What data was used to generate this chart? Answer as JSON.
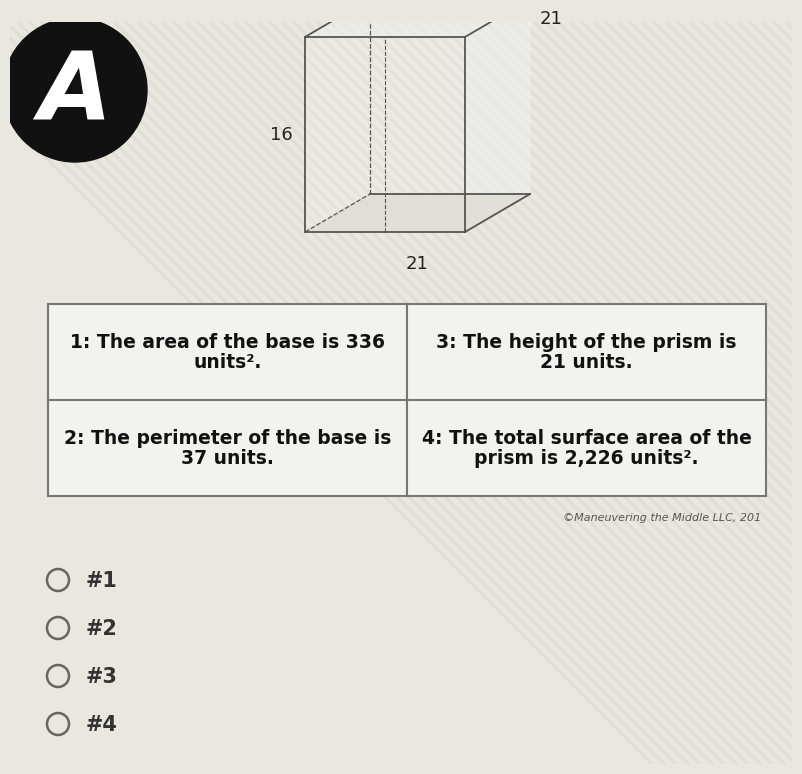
{
  "background_color": "#e8e8e0",
  "stripe_color": "#d8d8cc",
  "title_circle_color": "#111111",
  "title_letter": "A",
  "title_letter_color": "#ffffff",
  "title_letter_fontsize": 68,
  "cell1_text_line1": "1: The area of the base is 336",
  "cell1_text_line2": "units².",
  "cell2_text_line1": "2: The perimeter of the base is",
  "cell2_text_line2": "37 units.",
  "cell3_text_line1": "3: The height of the prism is",
  "cell3_text_line2": "21 units.",
  "cell4_text_line1": "4: The total surface area of the",
  "cell4_text_line2": "prism is 2,226 units².",
  "copyright_text": "©Maneuvering the Middle LLC, 201",
  "dim_16": "16",
  "dim_21_bottom": "21",
  "dim_21_right": "21",
  "radio_options": [
    "#1",
    "#2",
    "#3",
    "#4"
  ],
  "prism_face_color": "#f0f0ee",
  "prism_bottom_color": "#ddddd5",
  "prism_edge_color": "#555555",
  "table_bg": "#f2f2ee",
  "table_edge": "#777777",
  "cell_text_fontsize": 13.5,
  "radio_fontsize": 15
}
